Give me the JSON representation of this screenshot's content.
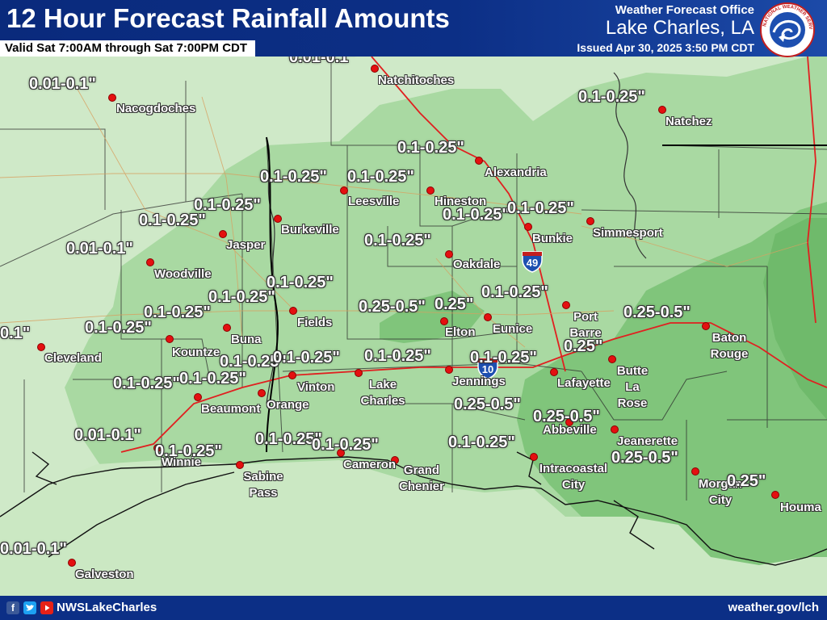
{
  "header": {
    "title": "12 Hour Forecast Rainfall Amounts",
    "valid": "Valid Sat 7:00AM through Sat 7:00PM CDT",
    "office_label": "Weather Forecast Office",
    "office_name": "Lake Charles, LA",
    "issued": "Issued Apr 30, 2025 3:50 PM CDT",
    "logo_text": "NATIONAL WEATHER SERVICE"
  },
  "footer": {
    "handle": "NWSLakeCharles",
    "website": "weather.gov/lch",
    "icons": [
      "facebook-icon",
      "twitter-icon",
      "youtube-icon"
    ]
  },
  "shields": {
    "i49": "49",
    "i10": "10"
  },
  "legend_colors": {
    "0.01-0.1": "#cde8c6",
    "0.1-0.25": "#a8d8a0",
    "0.25-0.5": "#7dc478",
    "road": "#e02020",
    "coast": "#111111"
  },
  "cities": [
    {
      "name": "Natchitoches"
    },
    {
      "name": "Nacogdoches"
    },
    {
      "name": "Natchez"
    },
    {
      "name": "Alexandria"
    },
    {
      "name": "Leesville"
    },
    {
      "name": "Hineston"
    },
    {
      "name": "Bunkie"
    },
    {
      "name": "Simmesport"
    },
    {
      "name": "Burkeville"
    },
    {
      "name": "Jasper"
    },
    {
      "name": "Woodville"
    },
    {
      "name": "Oakdale"
    },
    {
      "name": "Fields"
    },
    {
      "name": "Elton"
    },
    {
      "name": "Eunice"
    },
    {
      "name": "Port Barre"
    },
    {
      "name": "Baton Rouge"
    },
    {
      "name": "Buna"
    },
    {
      "name": "Kountze"
    },
    {
      "name": "Cleveland"
    },
    {
      "name": "Vinton"
    },
    {
      "name": "Lake Charles"
    },
    {
      "name": "Jennings"
    },
    {
      "name": "Lafayette"
    },
    {
      "name": "Butte La Rose"
    },
    {
      "name": "Beaumont"
    },
    {
      "name": "Orange"
    },
    {
      "name": "Abbeville"
    },
    {
      "name": "Jeanerette"
    },
    {
      "name": "Winnie"
    },
    {
      "name": "Sabine Pass"
    },
    {
      "name": "Cameron"
    },
    {
      "name": "Grand Chenier"
    },
    {
      "name": "Intracoastal City"
    },
    {
      "name": "Morgan City"
    },
    {
      "name": "Houma"
    },
    {
      "name": "Galveston"
    }
  ],
  "amounts": [
    "0.01-0.1\"",
    "0.01-0.1\"",
    "0.1-0.25\"",
    "0.1-0.25\"",
    "0.1-0.25\"",
    "0.1-0.25\"",
    "0.1-0.25\"",
    "0.1-0.25\"",
    "0.1-0.25\"",
    "0.1-0.25\"",
    "0.01-0.1\"",
    "0.1-0.25\"",
    "0.1-0.25\"",
    "0.1-0.25\"",
    "0.25-0.5\"",
    "0.25\"",
    "0.1-0.25\"",
    "0.25-0.5\"",
    "0.1-0.25\"",
    "0.1-0.25\"",
    "0.1\"",
    "0.1-0.25\"",
    "0.1-0.25\"",
    "0.1-0.25\"",
    "0.1-0.25\"",
    "0.25\"",
    "0.1-0.25\"",
    "0.1-0.25\"",
    "0.25-0.5\"",
    "0.25-0.5\"",
    "0.01-0.1\"",
    "0.1-0.25\"",
    "0.1-0.25\"",
    "0.1-0.25\"",
    "0.1-0.25\"",
    "0.25-0.5\"",
    "0.25\"",
    "0.01-0.1\""
  ]
}
